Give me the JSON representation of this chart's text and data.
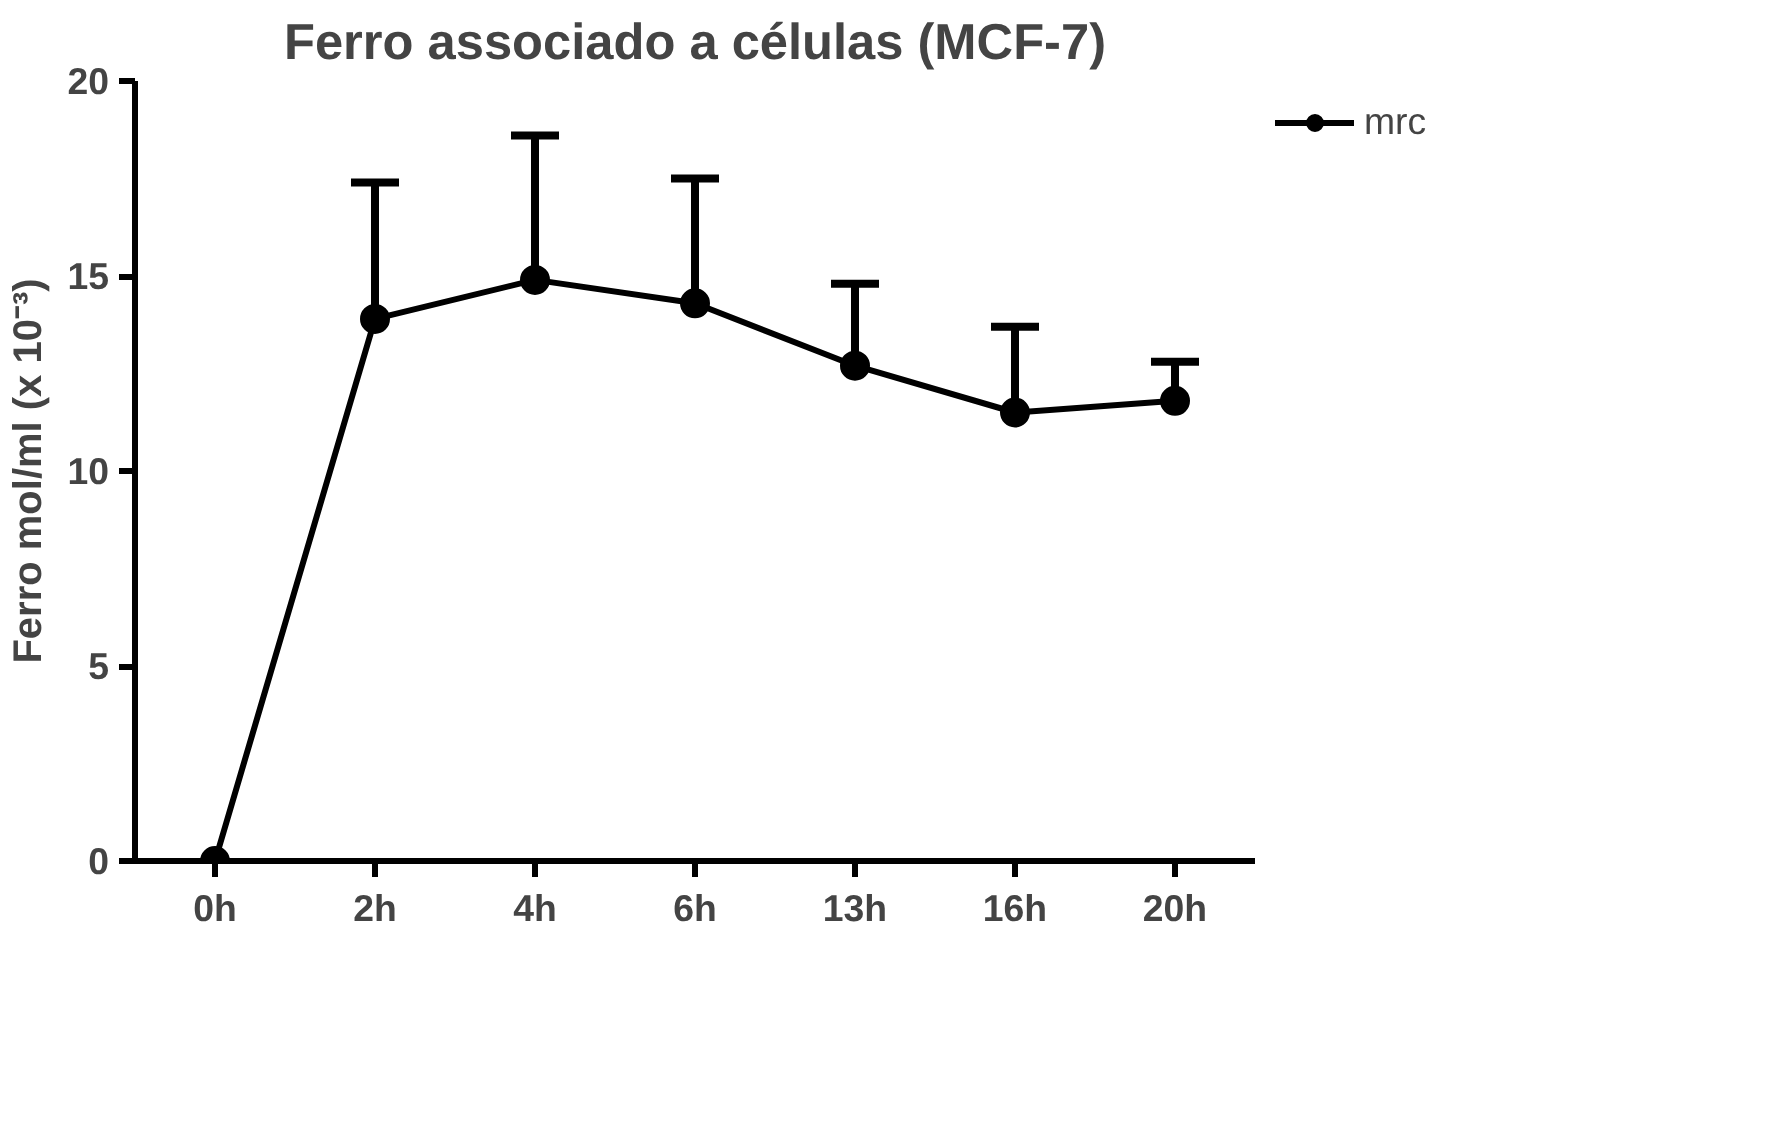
{
  "chart_data": {
    "type": "line",
    "title": "Ferro associado a células (MCF-7)",
    "ylabel": "Ferro mol/ml (x 10⁻³)",
    "categories": [
      "0h",
      "2h",
      "4h",
      "6h",
      "13h",
      "16h",
      "20h"
    ],
    "series": [
      {
        "name": "mrc",
        "color": "#000000",
        "values": [
          0,
          13.9,
          14.9,
          14.3,
          12.7,
          11.5,
          11.8
        ],
        "errors": [
          null,
          [
            13.9,
            17.4
          ],
          [
            14.9,
            18.6
          ],
          [
            14.3,
            17.5
          ],
          [
            12.7,
            14.8
          ],
          [
            11.5,
            13.7
          ],
          [
            11.8,
            12.8
          ]
        ]
      }
    ],
    "ylim": [
      0,
      20
    ],
    "yticks": [
      0,
      5,
      10,
      15,
      20
    ],
    "grid": false,
    "legend": "right",
    "marker": "circle",
    "line_style": "solid"
  }
}
